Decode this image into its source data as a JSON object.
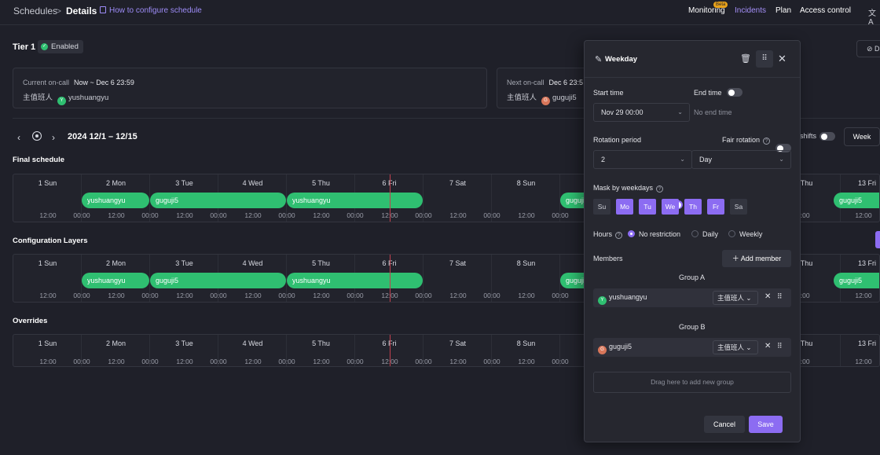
{
  "breadcrumb": {
    "root": "Schedules",
    "sep": ">",
    "current": "Details"
  },
  "doc_link": "How to configure schedule",
  "nav": {
    "monitoring": "Monitoring",
    "beta": "Beta",
    "incidents": "Incidents",
    "plan": "Plan",
    "access": "Access control",
    "translate": "文A"
  },
  "tier": {
    "name": "Tier 1",
    "status": "Enabled",
    "right_button": "D"
  },
  "current_oncall": {
    "label": "Current on-call",
    "range": "Now ~ Dec 6 23:59",
    "role": "主值班人",
    "avatar": "Y",
    "user": "yushuangyu"
  },
  "next_oncall": {
    "label": "Next on-call",
    "range": "Dec 6 23:5",
    "role": "主值班人",
    "avatar": "G",
    "user": "guguji5"
  },
  "range": {
    "label": "2024 12/1 – 12/15",
    "prev": "‹",
    "next": "›"
  },
  "view": {
    "shifts": "shifts",
    "week": "Week"
  },
  "sections": {
    "final": "Final schedule",
    "layers": "Configuration Layers",
    "overrides": "Overrides"
  },
  "days": [
    "1 Sun",
    "2 Mon",
    "3 Tue",
    "4 Wed",
    "5 Thu",
    "6 Fri",
    "7 Sat",
    "8 Sun",
    "Thu",
    "13 Fri"
  ],
  "ticks": [
    "12:00",
    "00:00",
    "12:00",
    "00:00",
    "12:00",
    "00:00",
    "12:00",
    "00:00",
    "12:00",
    "00:00",
    "12:00",
    "00:00",
    "12:00",
    "00:00",
    "12:00",
    "00:00",
    "00:00",
    "12:00"
  ],
  "shifts": [
    {
      "name": "yushuangyu"
    },
    {
      "name": "guguji5"
    },
    {
      "name": "yushuangyu"
    },
    {
      "name": "guguji5"
    },
    {
      "name": "guguji5"
    }
  ],
  "panel": {
    "title": "Weekday",
    "start_time_label": "Start time",
    "start_time_value": "Nov 29 00:00",
    "end_time_label": "End time",
    "end_time_value": "No end time",
    "rotation_label": "Rotation period",
    "rotation_value": "2",
    "rotation_unit": "Day",
    "fair_rotation_label": "Fair rotation",
    "mask_label": "Mask by weekdays",
    "weekdays": [
      {
        "label": "Su",
        "on": false
      },
      {
        "label": "Mo",
        "on": true
      },
      {
        "label": "Tu",
        "on": true
      },
      {
        "label": "We",
        "on": true
      },
      {
        "label": "Th",
        "on": true
      },
      {
        "label": "Fr",
        "on": true
      },
      {
        "label": "Sa",
        "on": false
      }
    ],
    "hours_label": "Hours",
    "hours_options": [
      "No restriction",
      "Daily",
      "Weekly"
    ],
    "members_label": "Members",
    "add_member": "Add member",
    "group_a": "Group A",
    "group_a_member": {
      "avatar": "Y",
      "name": "yushuangyu",
      "role": "主值班人"
    },
    "group_b": "Group B",
    "group_b_member": {
      "avatar": "G",
      "name": "guguji5",
      "role": "主值班人"
    },
    "drop_zone": "Drag here to add new group",
    "cancel": "Cancel",
    "save": "Save"
  }
}
